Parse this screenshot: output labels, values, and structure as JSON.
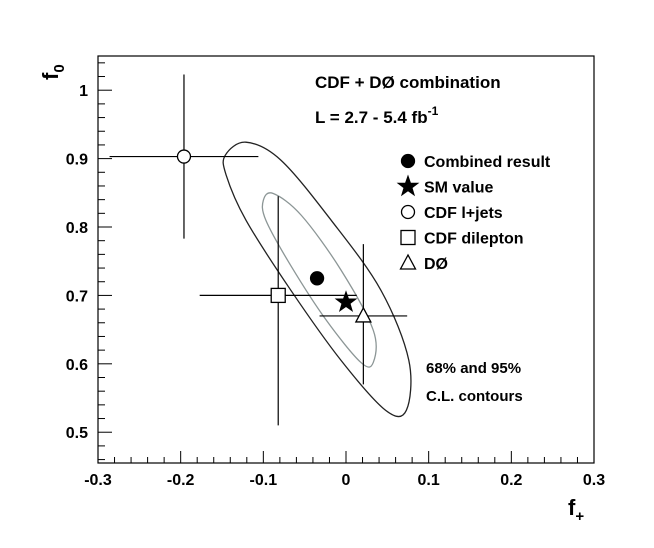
{
  "chart_data": {
    "type": "scatter",
    "title": "CDF + DØ combination",
    "subtitle": {
      "text": "L = 2.7 - 5.4 fb",
      "sup": "-1"
    },
    "xlabel": {
      "text": "f",
      "sub": "+"
    },
    "ylabel": {
      "text": "f",
      "sub": "0"
    },
    "annotation": [
      "68% and 95%",
      "C.L. contours"
    ],
    "xlim": [
      -0.3,
      0.3
    ],
    "ylim": [
      0.455,
      1.05
    ],
    "xticks": [
      -0.3,
      -0.2,
      -0.1,
      0,
      0.1,
      0.2,
      0.3
    ],
    "yticks": [
      0.5,
      0.6,
      0.7,
      0.8,
      0.9,
      1
    ],
    "series": [
      {
        "name": "Combined result",
        "marker": "circle",
        "filled": true,
        "color": "#000000",
        "x": -0.035,
        "y": 0.725
      },
      {
        "name": "SM value",
        "marker": "star",
        "filled": true,
        "color": "#000000",
        "x": 0,
        "y": 0.69
      },
      {
        "name": "CDF l+jets",
        "marker": "circle",
        "filled": false,
        "color": "#000000",
        "x": -0.196,
        "y": 0.903,
        "xerr": 0.09,
        "yerr": [
          0.12,
          0.12
        ]
      },
      {
        "name": "CDF dilepton",
        "marker": "square",
        "filled": false,
        "color": "#000000",
        "x": -0.082,
        "y": 0.7,
        "xerr": 0.095,
        "yerr": [
          0.19,
          0.145
        ]
      },
      {
        "name": "DØ",
        "marker": "triangle",
        "filled": false,
        "color": "#000000",
        "x": 0.021,
        "y": 0.67,
        "xerr": 0.053,
        "yerr": [
          0.1,
          0.105
        ]
      }
    ],
    "contours": [
      {
        "color": "#222222",
        "x": [
          -0.146,
          -0.121,
          -0.079,
          -0.018,
          0.042,
          0.076,
          0.073,
          0.048,
          -0.006,
          -0.067,
          -0.121,
          -0.145
        ],
        "y": [
          0.905,
          0.924,
          0.898,
          0.81,
          0.708,
          0.605,
          0.532,
          0.532,
          0.605,
          0.708,
          0.81,
          0.876
        ]
      },
      {
        "color": "#8c9696",
        "x": [
          -0.1,
          -0.088,
          -0.054,
          -0.006,
          0.033,
          0.033,
          0.018,
          -0.024,
          -0.067,
          -0.097
        ],
        "y": [
          0.839,
          0.849,
          0.817,
          0.737,
          0.649,
          0.602,
          0.602,
          0.664,
          0.744,
          0.81
        ]
      }
    ]
  }
}
